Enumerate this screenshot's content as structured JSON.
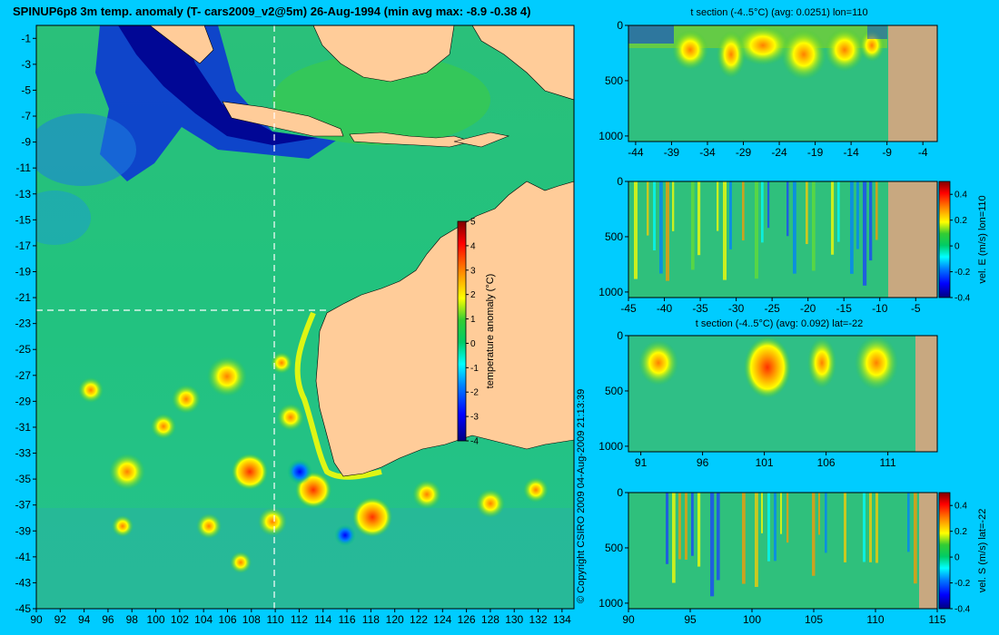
{
  "title": "SPINUP6p8 3m temp. anomaly (T- cars2009_v2@5m) 26-Aug-1994 (min avg max: -8.9 -0.38 4)",
  "copyright": "© Copyright CSIRO 2009   04-Aug-2009 21:13:39",
  "colors": {
    "background": "#00ccff",
    "land": "#ffcc99",
    "section_land": "#c8a880",
    "colormap": [
      "#00007f",
      "#0000ff",
      "#0080ff",
      "#00ffff",
      "#00cc66",
      "#33cc33",
      "#ffff00",
      "#ff8000",
      "#ff0000",
      "#7f0000"
    ]
  },
  "chart_data": [
    {
      "type": "heatmap",
      "title": "SPINUP6p8 3m temp. anomaly (T- cars2009_v2@5m) 26-Aug-1994 (min avg max: -8.9 -0.38 4)",
      "subtitle": "",
      "x_ticks": [
        "90",
        "92",
        "94",
        "96",
        "98",
        "100",
        "102",
        "104",
        "106",
        "108",
        "110",
        "112",
        "114",
        "116",
        "118",
        "120",
        "122",
        "124",
        "126",
        "128",
        "130",
        "132",
        "134"
      ],
      "y_ticks": [
        "-1",
        "-3",
        "-5",
        "-7",
        "-9",
        "-11",
        "-13",
        "-15",
        "-17",
        "-19",
        "-21",
        "-23",
        "-25",
        "-27",
        "-29",
        "-31",
        "-33",
        "-35",
        "-37",
        "-39",
        "-41",
        "-43",
        "-45"
      ],
      "xlim": [
        90,
        135
      ],
      "ylim": [
        -45,
        0
      ],
      "section_lines": {
        "lon": 110,
        "lat": -22
      },
      "colorbar": {
        "label": "temperature anomaly (°C)",
        "range": [
          -4,
          5
        ],
        "ticks": [
          "5",
          "4",
          "3",
          "2",
          "1",
          "0",
          "-1",
          "-2",
          "-3",
          "-4"
        ]
      },
      "stats": {
        "min": -8.9,
        "avg": -0.38,
        "max": 4
      }
    },
    {
      "type": "heatmap",
      "title": "t section (-4..5°C) (avg: 0.0251) lon=110",
      "x_ticks": [
        "-44",
        "-39",
        "-34",
        "-29",
        "-24",
        "-19",
        "-14",
        "-9",
        "-4"
      ],
      "xlim": [
        -45,
        -2
      ],
      "y_ticks": [
        "0",
        "500",
        "1000"
      ],
      "ylim": [
        1050,
        0
      ],
      "colorbar": null
    },
    {
      "type": "heatmap",
      "title": "",
      "x_ticks": [
        "-45",
        "-40",
        "-35",
        "-30",
        "-25",
        "-20",
        "-15",
        "-10",
        "-5"
      ],
      "xlim": [
        -45,
        -2
      ],
      "y_ticks": [
        "0",
        "500",
        "1000"
      ],
      "ylim": [
        1050,
        0
      ],
      "colorbar": {
        "label": "vel. E (m/s) lon=110",
        "range": [
          -0.4,
          0.5
        ],
        "ticks": [
          "0.4",
          "0.2",
          "0",
          "-0.2",
          "-0.4"
        ]
      }
    },
    {
      "type": "heatmap",
      "title": "t section (-4..5°C) (avg: 0.092) lat=-22",
      "x_ticks": [
        "91",
        "96",
        "101",
        "106",
        "111"
      ],
      "xlim": [
        90,
        115
      ],
      "y_ticks": [
        "0",
        "500",
        "1000"
      ],
      "ylim": [
        1050,
        0
      ],
      "colorbar": null
    },
    {
      "type": "heatmap",
      "title": "",
      "x_ticks": [
        "90",
        "95",
        "100",
        "105",
        "110",
        "115"
      ],
      "xlim": [
        90,
        115
      ],
      "y_ticks": [
        "0",
        "500",
        "1000"
      ],
      "ylim": [
        1050,
        0
      ],
      "colorbar": {
        "label": "vel. S (m/s) lat=-22",
        "range": [
          -0.4,
          0.5
        ],
        "ticks": [
          "0.4",
          "0.2",
          "0",
          "-0.2",
          "-0.4"
        ]
      }
    }
  ]
}
